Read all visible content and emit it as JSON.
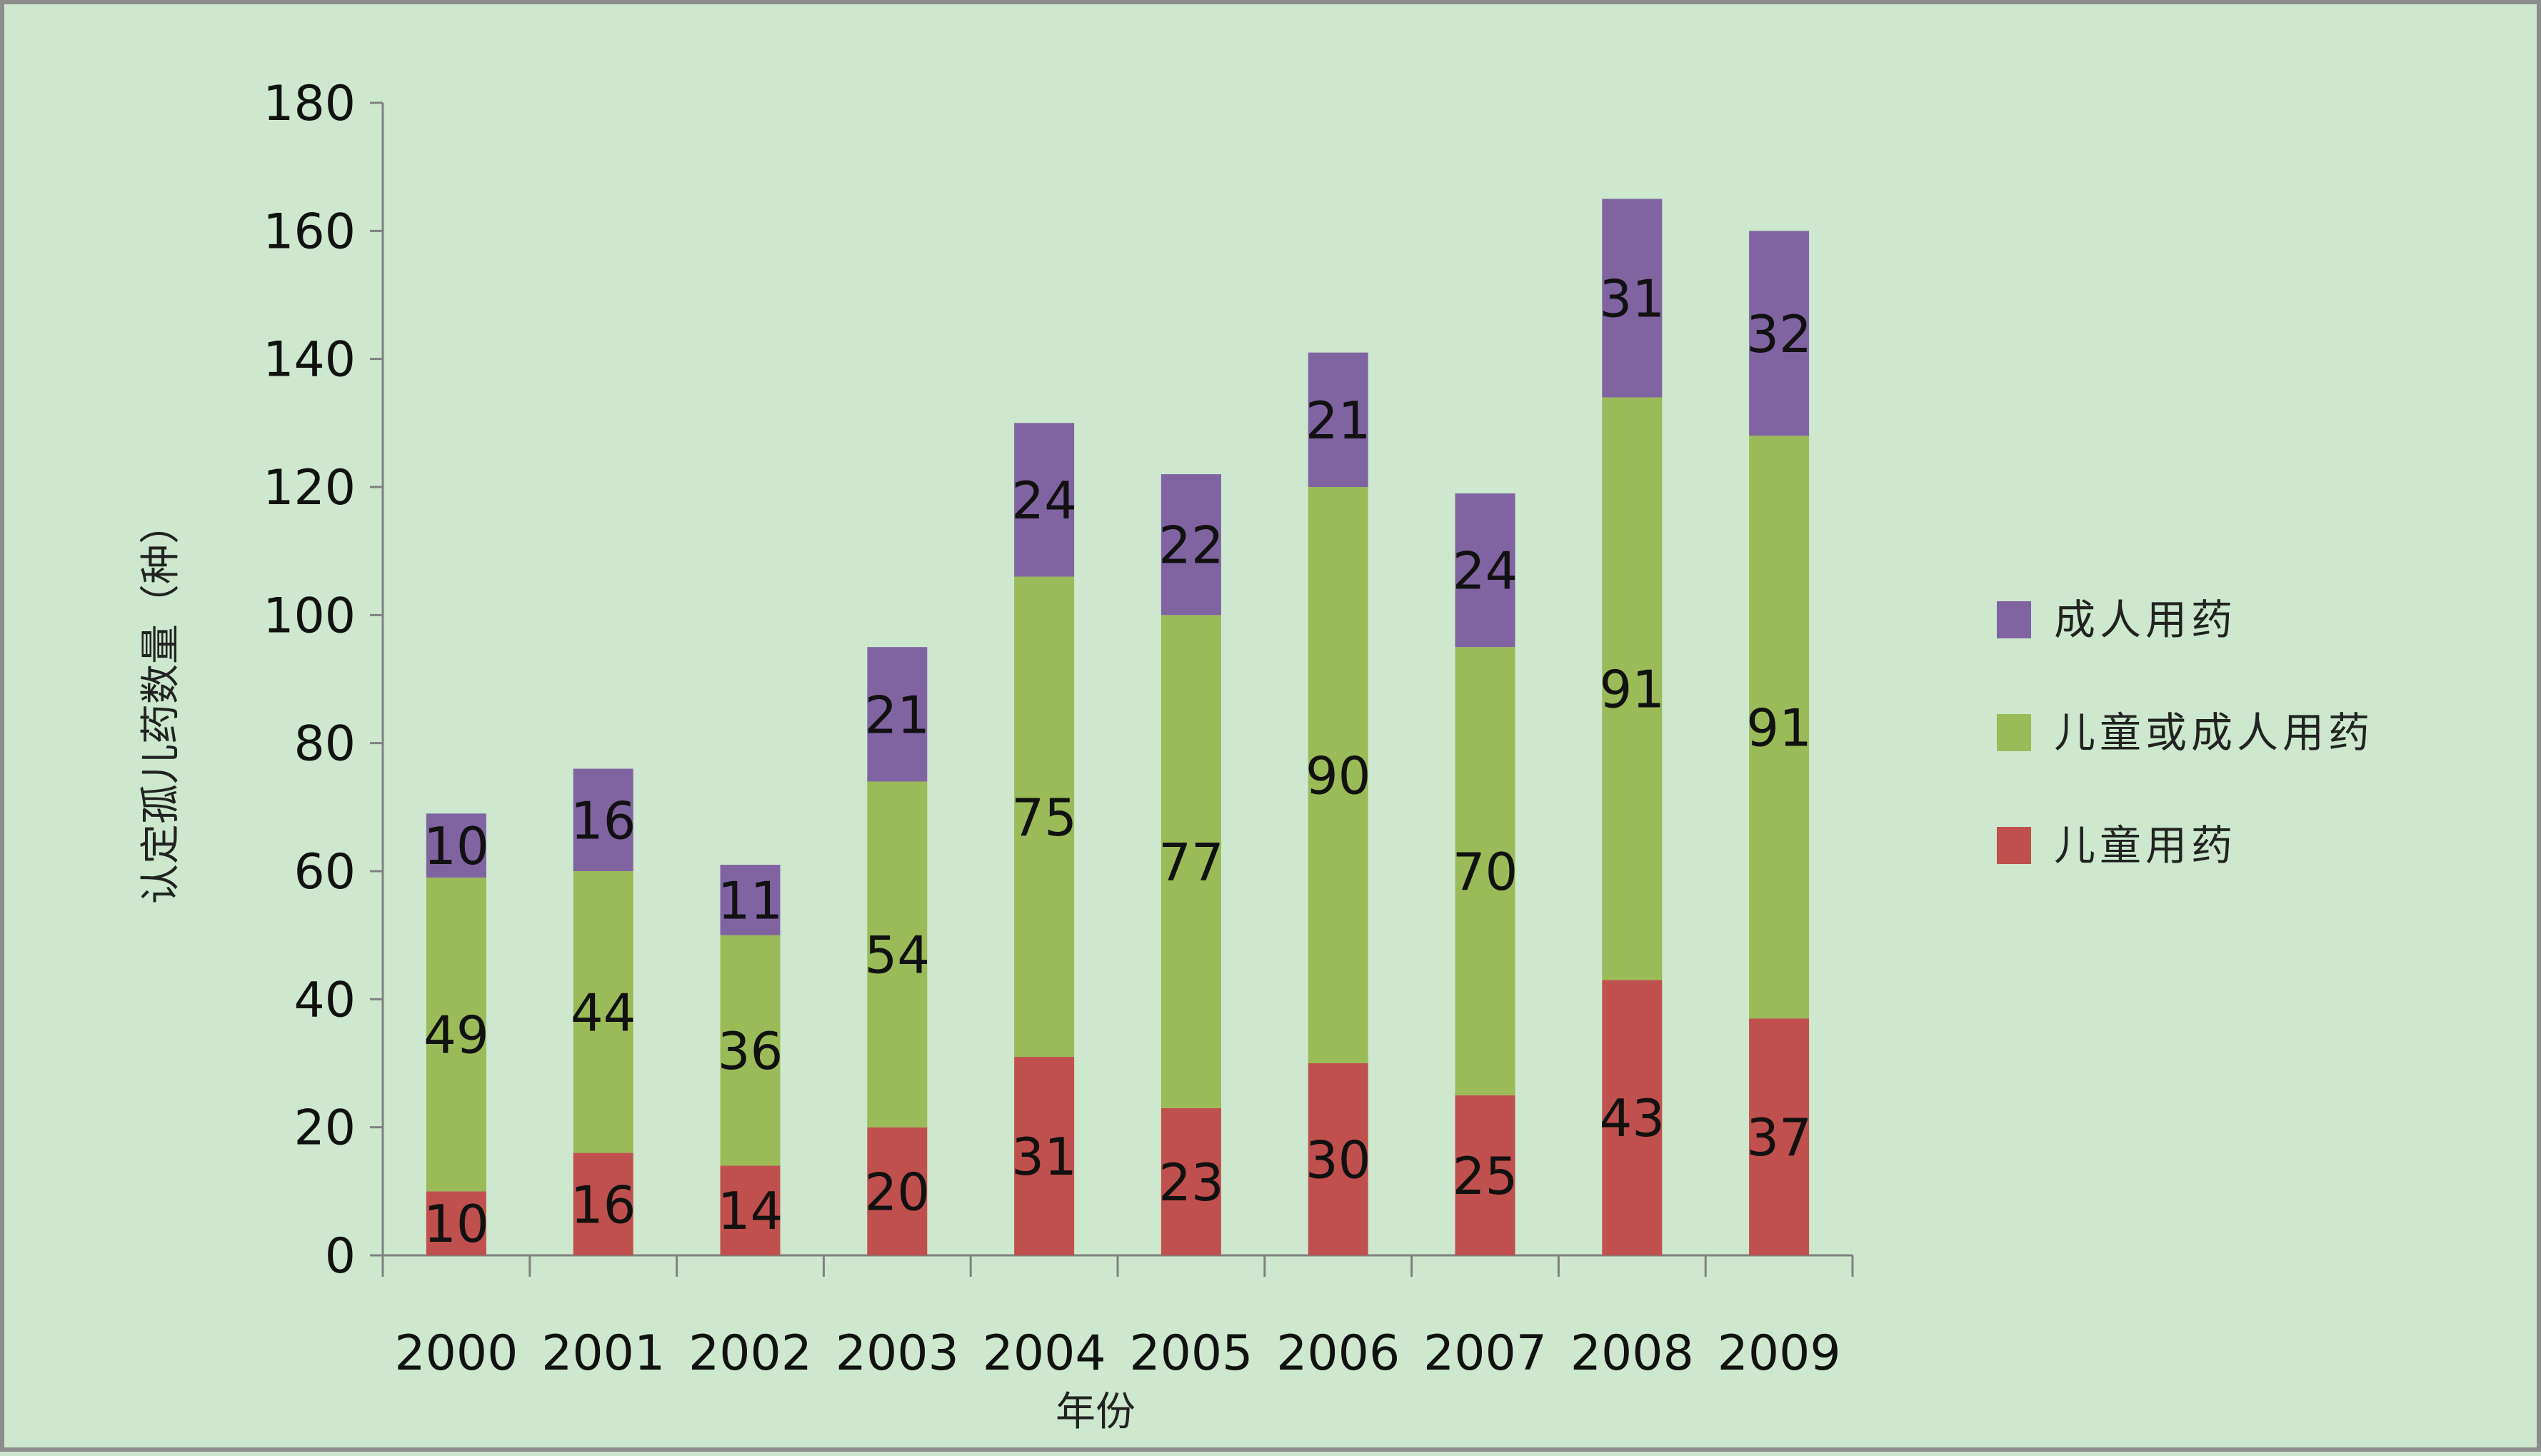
{
  "chart_data": {
    "type": "bar",
    "stacked": true,
    "title": "",
    "xlabel": "年份",
    "ylabel": "认定孤儿药数量（种）",
    "ylim": [
      0,
      180
    ],
    "yticks": [
      0,
      20,
      40,
      60,
      80,
      100,
      120,
      140,
      160,
      180
    ],
    "categories": [
      "2000",
      "2001",
      "2002",
      "2003",
      "2004",
      "2005",
      "2006",
      "2007",
      "2008",
      "2009"
    ],
    "series": [
      {
        "name": "儿童用药",
        "color": "#c0504d",
        "values": [
          10,
          16,
          14,
          20,
          31,
          23,
          30,
          25,
          43,
          37
        ]
      },
      {
        "name": "儿童或成人用药",
        "color": "#9bbb59",
        "values": [
          49,
          44,
          36,
          54,
          75,
          77,
          90,
          70,
          91,
          91
        ]
      },
      {
        "name": "成人用药",
        "color": "#8064a2",
        "values": [
          10,
          16,
          11,
          21,
          24,
          22,
          21,
          24,
          31,
          32
        ]
      }
    ],
    "legend": {
      "position": "right",
      "order": [
        "成人用药",
        "儿童或成人用药",
        "儿童用药"
      ]
    },
    "grid": false,
    "axis_color": "#808080"
  }
}
